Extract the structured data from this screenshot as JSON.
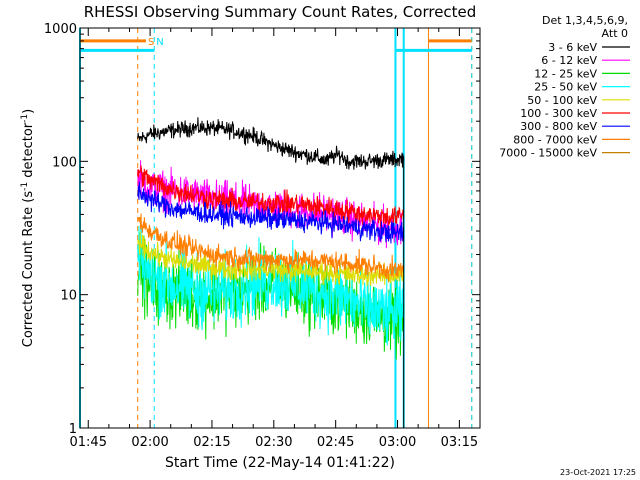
{
  "chart_data": {
    "type": "line",
    "title": "RHESSI Observing Summary Count Rates, Corrected",
    "xlabel": "Start Time (22-May-14 01:41:22)",
    "ylabel_main": "Corrected Count Rate (s",
    "ylabel_sup1": "-1",
    "ylabel_mid": " detector",
    "ylabel_sup2": "-1",
    "ylabel_end": ")",
    "yscale": "log",
    "ylim": [
      1,
      1000
    ],
    "xlim_minutes": [
      103,
      200
    ],
    "x_ticks": [
      {
        "value": 105,
        "label": "01:45"
      },
      {
        "value": 120,
        "label": "02:00"
      },
      {
        "value": 135,
        "label": "02:15"
      },
      {
        "value": 150,
        "label": "02:30"
      },
      {
        "value": 165,
        "label": "02:45"
      },
      {
        "value": 180,
        "label": "03:00"
      },
      {
        "value": 195,
        "label": "03:15"
      }
    ],
    "y_ticks": [
      {
        "value": 1,
        "label": "1"
      },
      {
        "value": 10,
        "label": "10"
      },
      {
        "value": 100,
        "label": "100"
      },
      {
        "value": 1000,
        "label": "1000"
      }
    ],
    "legend": {
      "title_line1": "Det 1,3,4,5,6,9,",
      "title_line2": "Att 0",
      "placement": "right",
      "entries": [
        {
          "label": "3 - 6 keV",
          "color": "#000000"
        },
        {
          "label": "6 - 12 keV",
          "color": "#ff00ff"
        },
        {
          "label": "12 - 25 keV",
          "color": "#00dd00"
        },
        {
          "label": "25 - 50 keV",
          "color": "#00ffff"
        },
        {
          "label": "50 - 100 keV",
          "color": "#dddd00"
        },
        {
          "label": "100 - 300 keV",
          "color": "#ff0000"
        },
        {
          "label": "300 - 800 keV",
          "color": "#0000ff"
        },
        {
          "label": "800 - 7000 keV",
          "color": "#ff8000"
        },
        {
          "label": "7000 - 15000 keV",
          "color": "#c08000"
        }
      ]
    },
    "x_start": 117,
    "x_end": 181.5,
    "series": [
      {
        "name": "3 - 6 keV",
        "color": "#000000",
        "noise": 0.03,
        "points": [
          [
            117,
            145
          ],
          [
            120,
            160
          ],
          [
            125,
            170
          ],
          [
            130,
            178
          ],
          [
            135,
            178
          ],
          [
            140,
            170
          ],
          [
            145,
            155
          ],
          [
            148,
            140
          ],
          [
            152,
            125
          ],
          [
            156,
            115
          ],
          [
            160,
            108
          ],
          [
            163,
            100
          ],
          [
            164,
            108
          ],
          [
            166,
            112
          ],
          [
            168,
            100
          ],
          [
            172,
            100
          ],
          [
            176,
            102
          ],
          [
            180,
            103
          ],
          [
            181.5,
            107
          ]
        ]
      },
      {
        "name": "6 - 12 keV",
        "color": "#ff00ff",
        "noise": 0.07,
        "points": [
          [
            117,
            75
          ],
          [
            120,
            63
          ],
          [
            125,
            60
          ],
          [
            130,
            56
          ],
          [
            135,
            52
          ],
          [
            140,
            50
          ],
          [
            145,
            47
          ],
          [
            150,
            45
          ],
          [
            155,
            43
          ],
          [
            160,
            42
          ],
          [
            165,
            40
          ],
          [
            170,
            36
          ],
          [
            175,
            33
          ],
          [
            180,
            32
          ],
          [
            181.5,
            32
          ]
        ]
      },
      {
        "name": "12 - 25 keV",
        "color": "#00dd00",
        "noise": 0.13,
        "points": [
          [
            117,
            17
          ],
          [
            120,
            12
          ],
          [
            125,
            10.5
          ],
          [
            130,
            10
          ],
          [
            135,
            9.8
          ],
          [
            140,
            10.5
          ],
          [
            145,
            11.5
          ],
          [
            150,
            12
          ],
          [
            155,
            11
          ],
          [
            160,
            10
          ],
          [
            165,
            9
          ],
          [
            170,
            8
          ],
          [
            175,
            7
          ],
          [
            180,
            6.3
          ],
          [
            181.5,
            6.3
          ]
        ]
      },
      {
        "name": "25 - 50 keV",
        "color": "#00ffff",
        "noise": 0.13,
        "points": [
          [
            117,
            19
          ],
          [
            120,
            14
          ],
          [
            125,
            12
          ],
          [
            130,
            11
          ],
          [
            135,
            10.5
          ],
          [
            140,
            11
          ],
          [
            145,
            12.5
          ],
          [
            150,
            13
          ],
          [
            155,
            12
          ],
          [
            160,
            11
          ],
          [
            165,
            10
          ],
          [
            170,
            8.5
          ],
          [
            175,
            7.5
          ],
          [
            180,
            7
          ],
          [
            181.5,
            7
          ]
        ]
      },
      {
        "name": "50 - 100 keV",
        "color": "#dddd00",
        "noise": 0.04,
        "points": [
          [
            117,
            25
          ],
          [
            120,
            21
          ],
          [
            125,
            18
          ],
          [
            130,
            17
          ],
          [
            135,
            16
          ],
          [
            140,
            15.5
          ],
          [
            145,
            15.5
          ],
          [
            150,
            15.5
          ],
          [
            155,
            15
          ],
          [
            160,
            15
          ],
          [
            165,
            14.5
          ],
          [
            170,
            14
          ],
          [
            175,
            14
          ],
          [
            180,
            14
          ],
          [
            181.5,
            14
          ]
        ]
      },
      {
        "name": "100 - 300 keV",
        "color": "#ff0000",
        "noise": 0.04,
        "points": [
          [
            117,
            83
          ],
          [
            120,
            72
          ],
          [
            125,
            62
          ],
          [
            130,
            57
          ],
          [
            135,
            52
          ],
          [
            140,
            50
          ],
          [
            145,
            49
          ],
          [
            150,
            49
          ],
          [
            155,
            48
          ],
          [
            160,
            46
          ],
          [
            165,
            44
          ],
          [
            170,
            41
          ],
          [
            175,
            39
          ],
          [
            180,
            38
          ],
          [
            181.5,
            40
          ]
        ]
      },
      {
        "name": "300 - 800 keV",
        "color": "#0000ff",
        "noise": 0.04,
        "points": [
          [
            117,
            60
          ],
          [
            120,
            52
          ],
          [
            125,
            45
          ],
          [
            130,
            42
          ],
          [
            135,
            40
          ],
          [
            140,
            39
          ],
          [
            145,
            38
          ],
          [
            150,
            37
          ],
          [
            155,
            36
          ],
          [
            160,
            35
          ],
          [
            165,
            34
          ],
          [
            170,
            32
          ],
          [
            175,
            30
          ],
          [
            180,
            29
          ],
          [
            181.5,
            29
          ]
        ]
      },
      {
        "name": "800 - 7000 keV",
        "color": "#ff8000",
        "noise": 0.04,
        "points": [
          [
            117,
            37
          ],
          [
            120,
            30
          ],
          [
            125,
            25
          ],
          [
            130,
            22
          ],
          [
            135,
            20
          ],
          [
            140,
            19
          ],
          [
            145,
            18.5
          ],
          [
            150,
            18.5
          ],
          [
            155,
            18
          ],
          [
            160,
            18
          ],
          [
            165,
            17.5
          ],
          [
            170,
            17
          ],
          [
            175,
            16
          ],
          [
            180,
            15
          ],
          [
            181.5,
            15.5
          ]
        ]
      }
    ],
    "annotations": [
      {
        "label": "S",
        "color": "#ff8000",
        "x": 119.5
      },
      {
        "label": "N",
        "color": "#00e0ff",
        "x": 121.5
      }
    ],
    "markers": {
      "saa_orange": [
        {
          "x": 103,
          "x2": 119,
          "y": 800
        },
        {
          "x": 187.5,
          "x2": 198,
          "y": 800
        }
      ],
      "night_cyan": [
        {
          "x": 103,
          "x2": 121,
          "y": 680
        },
        {
          "x": 179.5,
          "x2": 198,
          "y": 680
        }
      ],
      "orange_dashed": [
        117,
        198
      ],
      "orange_solid": [
        187.5
      ],
      "cyan_dashed": [
        121,
        198
      ],
      "cyan_solid": [
        103,
        179.5,
        181.5
      ]
    },
    "footer_date": "23-Oct-2021 17:25"
  }
}
